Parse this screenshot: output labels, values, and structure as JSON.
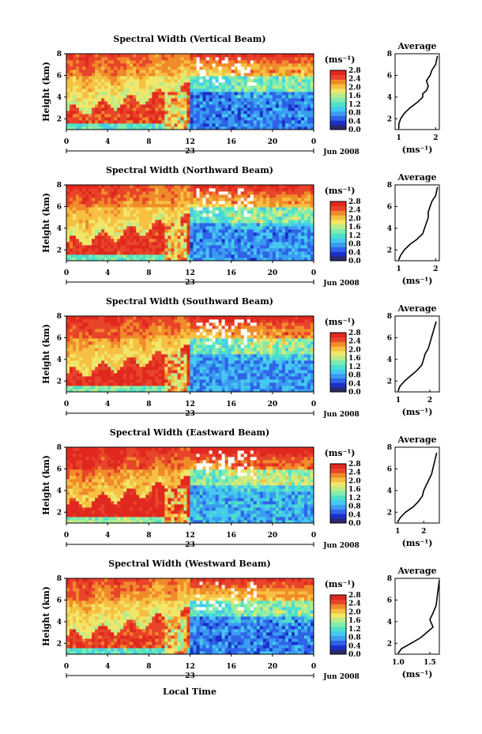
{
  "figure": {
    "bottom_xlabel": "Local Time",
    "colorscale": [
      "#2a2a6a",
      "#1a30c8",
      "#2f63e8",
      "#3a9cf0",
      "#45c8f0",
      "#4ee0c8",
      "#7eecb0",
      "#b8ec8a",
      "#f0e66a",
      "#f6c042",
      "#f08a2a",
      "#e8442a",
      "#e0281e"
    ]
  },
  "panels": [
    {
      "title": "Spectral Width (Vertical Beam)",
      "chart_data": {
        "type": "heatmap",
        "title": "Spectral Width (Vertical Beam)",
        "xlabel": "",
        "ylabel": "Height (km)",
        "xlim": [
          0,
          24
        ],
        "ylim": [
          1,
          8
        ],
        "xticks": [
          "0",
          "4",
          "8",
          "12",
          "16",
          "20",
          "0"
        ],
        "x_sublabels": [
          "23",
          "Jun 2008"
        ],
        "yticks": [
          "2",
          "4",
          "6",
          "8"
        ],
        "colorbar": {
          "label": "(ms⁻¹)",
          "ticks": [
            "0.0",
            "0.4",
            "0.8",
            "1.2",
            "1.6",
            "2.0",
            "2.4",
            "2.8"
          ],
          "range": [
            0,
            2.8
          ]
        },
        "average_profile": {
          "title": "Average",
          "xlabel": "(ms⁻¹)",
          "xticks": [
            "1",
            "2"
          ],
          "yticks": [
            "2",
            "4",
            "6",
            "8"
          ],
          "xlim": [
            0.9,
            2.1
          ],
          "ylim": [
            1,
            8
          ],
          "values": [
            1.0,
            1.0,
            1.05,
            1.15,
            1.3,
            1.5,
            1.65,
            1.65,
            1.75,
            1.8,
            1.75,
            1.85,
            1.9,
            2.0,
            2.05
          ],
          "heights": [
            1.1,
            1.5,
            2.0,
            2.5,
            3.0,
            3.5,
            4.0,
            4.3,
            4.6,
            5.0,
            5.5,
            6.0,
            6.5,
            7.0,
            7.8
          ]
        }
      }
    },
    {
      "title": "Spectral Width (Northward Beam)",
      "chart_data": {
        "type": "heatmap",
        "title": "Spectral Width (Northward Beam)",
        "xlabel": "",
        "ylabel": "Height (km)",
        "xlim": [
          0,
          24
        ],
        "ylim": [
          1,
          8
        ],
        "xticks": [
          "0",
          "4",
          "8",
          "12",
          "16",
          "20",
          "0"
        ],
        "x_sublabels": [
          "23",
          "Jun 2008"
        ],
        "yticks": [
          "2",
          "4",
          "6",
          "8"
        ],
        "colorbar": {
          "label": "(ms⁻¹)",
          "ticks": [
            "0.0",
            "0.4",
            "0.8",
            "1.2",
            "1.6",
            "2.0",
            "2.4",
            "2.8"
          ],
          "range": [
            0,
            2.8
          ]
        },
        "average_profile": {
          "title": "Average",
          "xlabel": "(ms⁻¹)",
          "xticks": [
            "1",
            "2"
          ],
          "yticks": [
            "2",
            "4",
            "6",
            "8"
          ],
          "xlim": [
            0.9,
            2.1
          ],
          "ylim": [
            1,
            8
          ],
          "values": [
            1.0,
            1.05,
            1.15,
            1.3,
            1.5,
            1.65,
            1.7,
            1.75,
            1.8,
            1.8,
            1.85,
            1.9,
            2.0,
            2.05
          ],
          "heights": [
            1.1,
            1.5,
            2.0,
            2.5,
            3.0,
            3.5,
            4.0,
            4.5,
            5.0,
            5.5,
            6.0,
            6.5,
            7.0,
            7.8
          ]
        }
      }
    },
    {
      "title": "Spectral Width (Southward Beam)",
      "chart_data": {
        "type": "heatmap",
        "title": "Spectral Width (Southward Beam)",
        "xlabel": "",
        "ylabel": "Height (km)",
        "xlim": [
          0,
          24
        ],
        "ylim": [
          1,
          8
        ],
        "xticks": [
          "0",
          "4",
          "8",
          "12",
          "16",
          "20",
          "0"
        ],
        "x_sublabels": [
          "23",
          "Jun 2008"
        ],
        "yticks": [
          "2",
          "4",
          "6",
          "8"
        ],
        "colorbar": {
          "label": "(ms⁻¹)",
          "ticks": [
            "0.0",
            "0.4",
            "0.8",
            "1.2",
            "1.6",
            "2.0",
            "2.4",
            "2.8"
          ],
          "range": [
            0,
            2.8
          ]
        },
        "average_profile": {
          "title": "Average",
          "xlabel": "(ms⁻¹)",
          "xticks": [
            "1",
            "2"
          ],
          "yticks": [
            "2",
            "4",
            "6",
            "8"
          ],
          "xlim": [
            0.9,
            2.3
          ],
          "ylim": [
            1,
            8
          ],
          "values": [
            1.0,
            1.05,
            1.2,
            1.4,
            1.6,
            1.75,
            1.8,
            1.85,
            1.95,
            2.0,
            2.05,
            2.1,
            2.2
          ],
          "heights": [
            1.1,
            1.5,
            2.0,
            2.5,
            3.0,
            3.5,
            4.0,
            4.5,
            5.0,
            5.5,
            6.0,
            6.5,
            7.5
          ]
        }
      }
    },
    {
      "title": "Spectral Width (Eastward Beam)",
      "chart_data": {
        "type": "heatmap",
        "title": "Spectral Width (Eastward Beam)",
        "xlabel": "",
        "ylabel": "Height (km)",
        "xlim": [
          0,
          24
        ],
        "ylim": [
          1,
          8
        ],
        "xticks": [
          "0",
          "4",
          "8",
          "12",
          "16",
          "20",
          "0"
        ],
        "x_sublabels": [
          "23",
          "Jun 2008"
        ],
        "yticks": [
          "2",
          "4",
          "6",
          "8"
        ],
        "colorbar": {
          "label": "(ms⁻¹)",
          "ticks": [
            "0.0",
            "0.4",
            "0.8",
            "1.2",
            "1.6",
            "2.0",
            "2.4",
            "2.8"
          ],
          "range": [
            0,
            2.8
          ]
        },
        "average_profile": {
          "title": "Average",
          "xlabel": "(ms⁻¹)",
          "xticks": [
            "1",
            "2"
          ],
          "yticks": [
            "2",
            "4",
            "6",
            "8"
          ],
          "xlim": [
            0.9,
            2.6
          ],
          "ylim": [
            1,
            8
          ],
          "values": [
            1.0,
            1.1,
            1.3,
            1.6,
            1.8,
            1.95,
            2.0,
            2.1,
            2.2,
            2.3,
            2.4,
            2.5
          ],
          "heights": [
            1.1,
            1.5,
            2.0,
            2.5,
            3.0,
            3.5,
            4.0,
            4.5,
            5.0,
            5.5,
            6.5,
            7.5
          ]
        }
      }
    },
    {
      "title": "Spectral Width (Westward Beam)",
      "chart_data": {
        "type": "heatmap",
        "title": "Spectral Width (Westward Beam)",
        "xlabel": "Local Time",
        "ylabel": "Height (km)",
        "xlim": [
          0,
          24
        ],
        "ylim": [
          1,
          8
        ],
        "xticks": [
          "0",
          "4",
          "8",
          "12",
          "16",
          "20",
          "0"
        ],
        "x_sublabels": [
          "23",
          "Jun 2008"
        ],
        "yticks": [
          "2",
          "4",
          "6",
          "8"
        ],
        "colorbar": {
          "label": "(ms⁻¹)",
          "ticks": [
            "0.0",
            "0.4",
            "0.8",
            "1.2",
            "1.6",
            "2.0",
            "2.4",
            "2.8"
          ],
          "range": [
            0,
            2.8
          ]
        },
        "average_profile": {
          "title": "Average",
          "xlabel": "(ms⁻¹)",
          "xticks": [
            "1.0",
            "1.5"
          ],
          "yticks": [
            "2",
            "4",
            "6",
            "8"
          ],
          "xlim": [
            0.95,
            1.65
          ],
          "ylim": [
            1,
            8
          ],
          "values": [
            1.0,
            1.05,
            1.2,
            1.35,
            1.45,
            1.55,
            1.5,
            1.55,
            1.6,
            1.62,
            1.65
          ],
          "heights": [
            1.1,
            1.5,
            2.0,
            2.5,
            3.0,
            3.5,
            4.2,
            4.8,
            5.5,
            6.5,
            7.8
          ]
        }
      }
    }
  ]
}
